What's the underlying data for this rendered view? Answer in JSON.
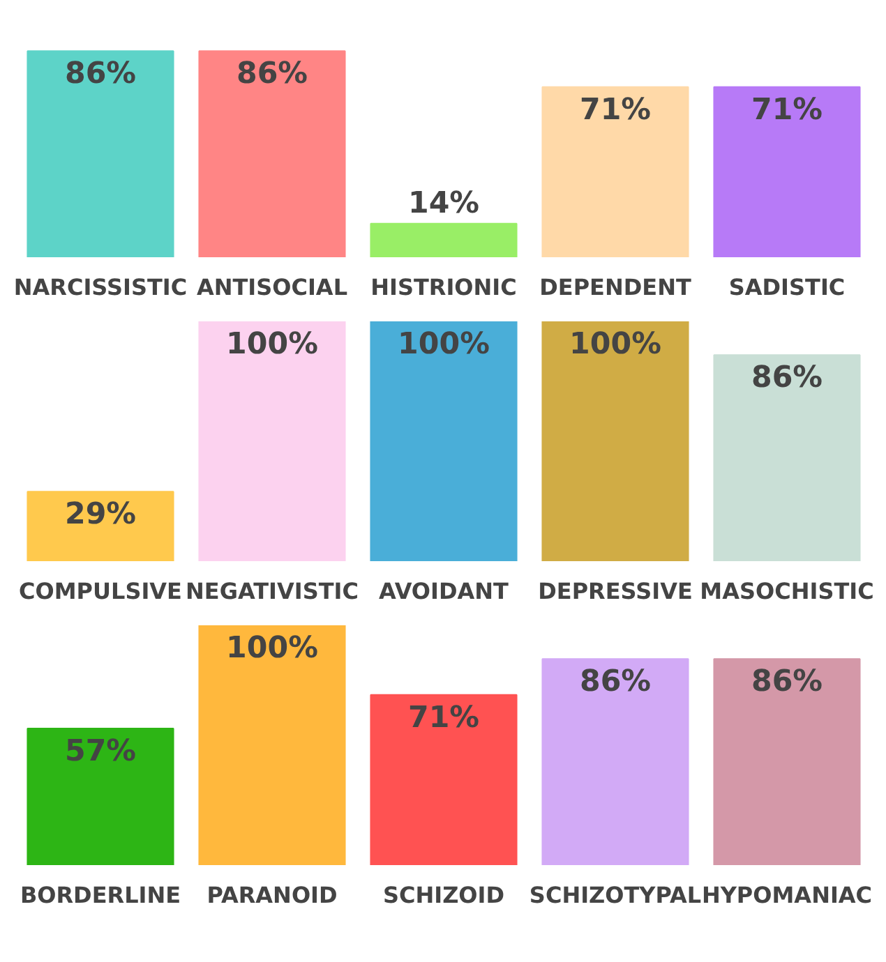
{
  "chart_data": [
    {
      "type": "bar",
      "categories": [
        "NARCISSISTIC",
        "ANTISOCIAL",
        "HISTRIONIC",
        "DEPENDENT",
        "SADISTIC"
      ],
      "values": [
        86,
        86,
        14,
        71,
        71
      ],
      "colors": [
        "#5dd3c8",
        "#ff8585",
        "#99ee66",
        "#ffd9a8",
        "#b77af7"
      ],
      "value_labels": [
        "86%",
        "86%",
        "14%",
        "71%",
        "71%"
      ],
      "tick_labels": "x"
    },
    {
      "type": "bar",
      "categories": [
        "COMPULSIVE",
        "NEGATIVISTIC",
        "AVOIDANT",
        "DEPRESSIVE",
        "MASOCHISTIC"
      ],
      "values": [
        29,
        100,
        100,
        100,
        86
      ],
      "colors": [
        "#ffc94d",
        "#fcd2ef",
        "#4aaed8",
        "#d0ac45",
        "#c9dfd6"
      ],
      "value_labels": [
        "29%",
        "100%",
        "100%",
        "100%",
        "86%"
      ],
      "tick_labels": "x"
    },
    {
      "type": "bar",
      "categories": [
        "BORDERLINE",
        "PARANOID",
        "SCHIZOID",
        "SCHIZOTYPAL",
        "HYPOMANIAC"
      ],
      "values": [
        57,
        100,
        71,
        86,
        86
      ],
      "colors": [
        "#2db515",
        "#ffb83d",
        "#ff5252",
        "#d2aaf6",
        "#d498a8"
      ],
      "value_labels": [
        "57%",
        "100%",
        "71%",
        "86%",
        "86%"
      ],
      "tick_labels": "x"
    }
  ]
}
